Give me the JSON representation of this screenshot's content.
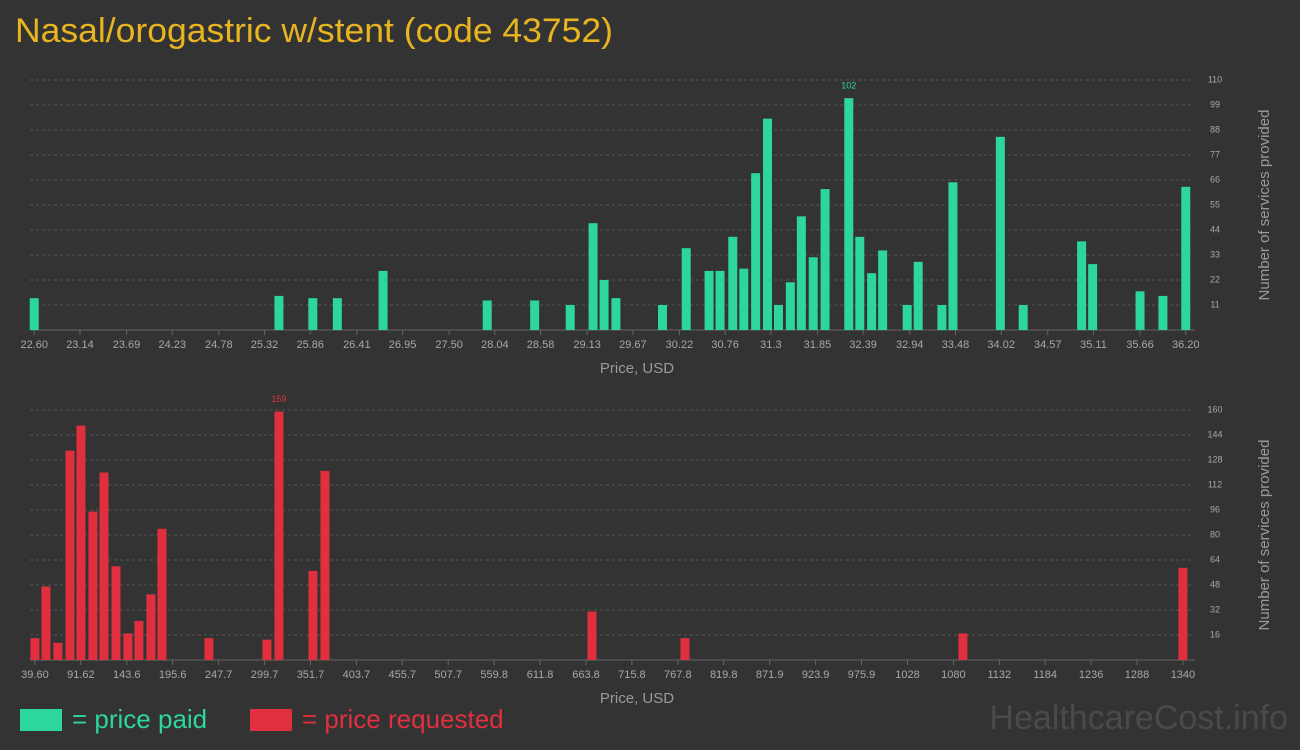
{
  "title": "Nasal/orogastric w/stent (code 43752)",
  "watermark": "HealthcareCost.info",
  "chart_data": [
    {
      "type": "bar",
      "x_label": "Price, USD",
      "y_label": "Number of services provided",
      "series": [
        {
          "name": "= price paid",
          "color": "#2dd69b",
          "x": [
            22.6,
            25.49,
            25.89,
            26.18,
            26.72,
            27.95,
            28.51,
            28.93,
            29.2,
            29.33,
            29.47,
            30.02,
            30.3,
            30.57,
            30.7,
            30.85,
            30.98,
            31.12,
            31.26,
            31.39,
            31.53,
            31.66,
            31.8,
            31.94,
            32.22,
            32.35,
            32.49,
            32.62,
            32.91,
            33.04,
            33.32,
            33.45,
            34.01,
            34.28,
            34.97,
            35.1,
            35.66,
            35.93,
            36.2
          ],
          "values": [
            14,
            15,
            14,
            14,
            26,
            13,
            13,
            11,
            47,
            22,
            14,
            11,
            36,
            26,
            26,
            41,
            27,
            69,
            93,
            11,
            21,
            50,
            32,
            62,
            102,
            41,
            25,
            35,
            11,
            30,
            11,
            65,
            85,
            11,
            39,
            29,
            17,
            15,
            63
          ]
        }
      ],
      "xlim": [
        22.55,
        36.25
      ],
      "xticks": [
        {
          "value": 22.6,
          "label": "22.60"
        },
        23.14,
        23.69,
        24.23,
        24.78,
        25.32,
        25.86,
        26.41,
        26.95,
        {
          "value": 27.5,
          "label": "27.50"
        },
        28.04,
        28.58,
        29.13,
        29.67,
        30.22,
        30.76,
        31.3,
        31.85,
        32.39,
        32.94,
        33.48,
        34.02,
        34.57,
        35.11,
        35.66,
        {
          "value": 36.2,
          "label": "36.20"
        }
      ],
      "ylim": [
        0,
        110
      ],
      "yticks": [
        11,
        22,
        33,
        44,
        55,
        66,
        77,
        88,
        99,
        110
      ],
      "grid": true
    },
    {
      "type": "bar",
      "x_label": "Price, USD",
      "y_label": "Number of services provided",
      "series": [
        {
          "name": "= price requested",
          "color": "#e0303f",
          "x": [
            39.6,
            52.06,
            65.65,
            79.25,
            91.71,
            105.3,
            117.8,
            131.4,
            144.9,
            157.4,
            171.0,
            183.5,
            236.7,
            302.4,
            316.0,
            354.5,
            368.1,
            670.6,
            775.9,
            1090.8,
            1340
          ],
          "values": [
            14,
            47,
            11,
            134,
            150,
            95,
            120,
            60,
            17,
            25,
            42,
            84,
            14,
            13,
            159,
            57,
            121,
            31,
            14,
            17,
            59
          ]
        }
      ],
      "xlim": [
        34,
        1348
      ],
      "xticks": [
        {
          "value": 39.6,
          "label": "39.60"
        },
        91.62,
        143.6,
        195.6,
        247.7,
        299.7,
        351.7,
        403.7,
        455.7,
        507.7,
        559.8,
        611.8,
        663.8,
        715.8,
        767.8,
        819.8,
        871.9,
        923.9,
        975.9,
        1028,
        1080,
        1132,
        1184,
        1236,
        1288,
        1340
      ],
      "ylim": [
        0,
        160
      ],
      "yticks": [
        16,
        32,
        48,
        64,
        80,
        96,
        112,
        128,
        144,
        160
      ],
      "grid": true
    }
  ]
}
